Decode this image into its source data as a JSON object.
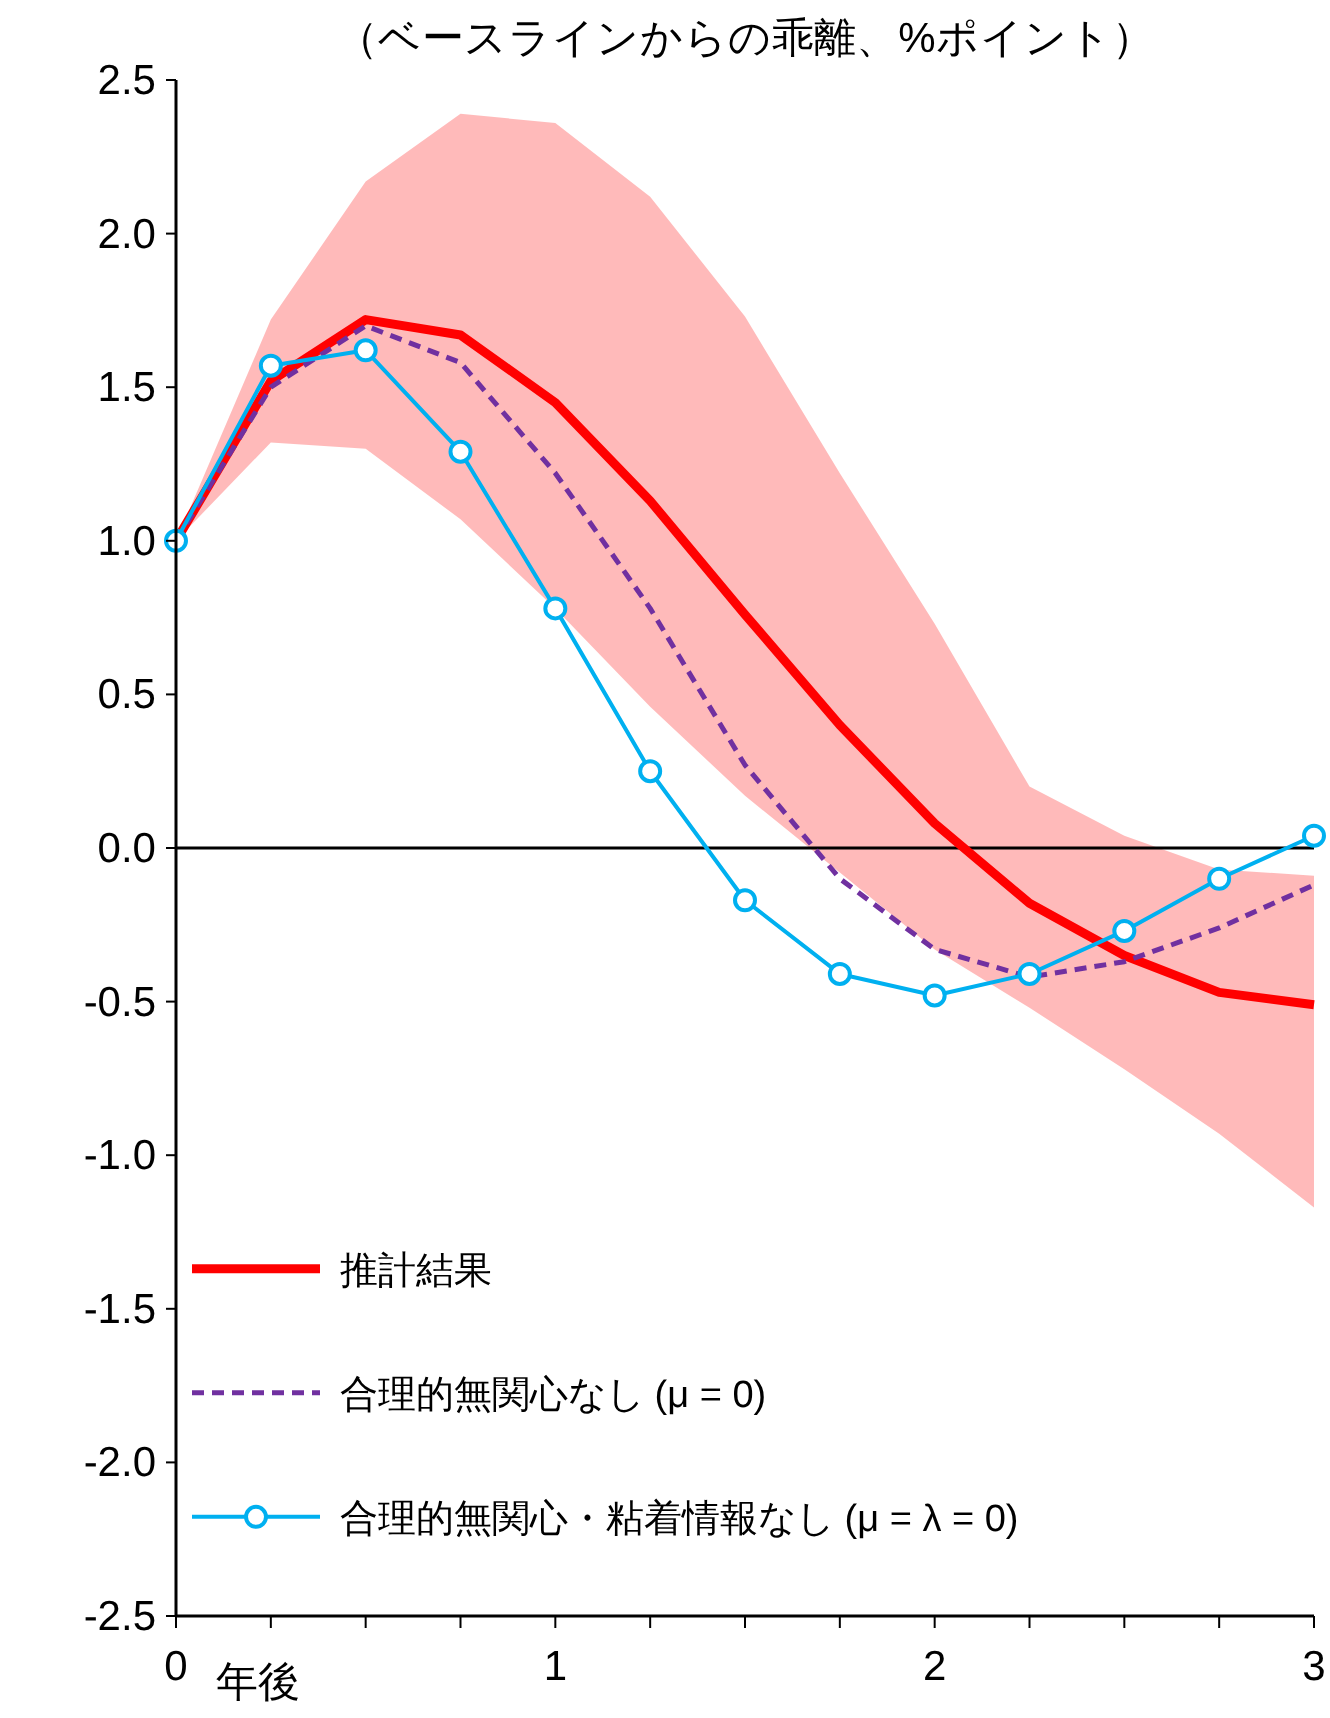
{
  "chart_data": {
    "type": "line",
    "title": "（ベースラインからの乖離、%ポイント）",
    "xlabel": "年後",
    "x": [
      0,
      0.25,
      0.5,
      0.75,
      1,
      1.25,
      1.5,
      1.75,
      2,
      2.25,
      2.5,
      2.75,
      3
    ],
    "xlim": [
      0,
      3
    ],
    "xticks": [
      0,
      {
        "value": 0.25,
        "label": null
      },
      {
        "value": 0.5,
        "label": null
      },
      {
        "value": 0.75,
        "label": null
      },
      1,
      {
        "value": 1.25,
        "label": null
      },
      {
        "value": 1.5,
        "label": null
      },
      {
        "value": 1.75,
        "label": null
      },
      2,
      {
        "value": 2.25,
        "label": null
      },
      {
        "value": 2.5,
        "label": null
      },
      {
        "value": 2.75,
        "label": null
      },
      3
    ],
    "ylim": [
      -2.5,
      2.5
    ],
    "yticks": [
      {
        "value": -2.5,
        "label": "-2.5"
      },
      {
        "value": -2,
        "label": "-2.0"
      },
      {
        "value": -1.5,
        "label": "-1.5"
      },
      {
        "value": -1,
        "label": "-1.0"
      },
      {
        "value": -0.5,
        "label": "-0.5"
      },
      {
        "value": 0,
        "label": "0.0"
      },
      {
        "value": 0.5,
        "label": "0.5"
      },
      {
        "value": 1,
        "label": "1.0"
      },
      {
        "value": 1.5,
        "label": "1.5"
      },
      {
        "value": 2,
        "label": "2.0"
      },
      {
        "value": 2.5,
        "label": "2.5"
      }
    ],
    "grid": false,
    "legend": "bottom left",
    "series": [
      {
        "name": "推計結果",
        "color": "#ff0000",
        "line_style": "solid",
        "marker": "none",
        "values": [
          1.0,
          1.52,
          1.72,
          1.67,
          1.45,
          1.13,
          0.76,
          0.4,
          0.08,
          -0.18,
          -0.35,
          -0.47,
          -0.51
        ],
        "lower": [
          1.0,
          1.32,
          1.3,
          1.07,
          0.78,
          0.46,
          0.17,
          -0.08,
          -0.33,
          -0.52,
          -0.72,
          -0.93,
          -1.17
        ],
        "upper": [
          1.0,
          1.72,
          2.17,
          2.39,
          2.36,
          2.12,
          1.73,
          1.22,
          0.73,
          0.2,
          0.04,
          -0.07,
          -0.09
        ]
      },
      {
        "name": "合理的無関心なし (μ = 0)",
        "color": "#7030a0",
        "line_style": "dashed",
        "marker": "none",
        "values": [
          1.0,
          1.5,
          1.7,
          1.58,
          1.22,
          0.78,
          0.27,
          -0.1,
          -0.33,
          -0.42,
          -0.37,
          -0.26,
          -0.12
        ]
      },
      {
        "name": "合理的無関心・粘着情報なし (μ = λ = 0)",
        "color": "#00b0f0",
        "line_style": "solid",
        "marker": "circle",
        "values": [
          1.0,
          1.57,
          1.62,
          1.29,
          0.78,
          0.25,
          -0.17,
          -0.41,
          -0.48,
          -0.41,
          -0.27,
          -0.1,
          0.04
        ]
      }
    ],
    "ref_lines": [
      {
        "axis": "y",
        "value": 0,
        "color": "#000000"
      }
    ]
  }
}
